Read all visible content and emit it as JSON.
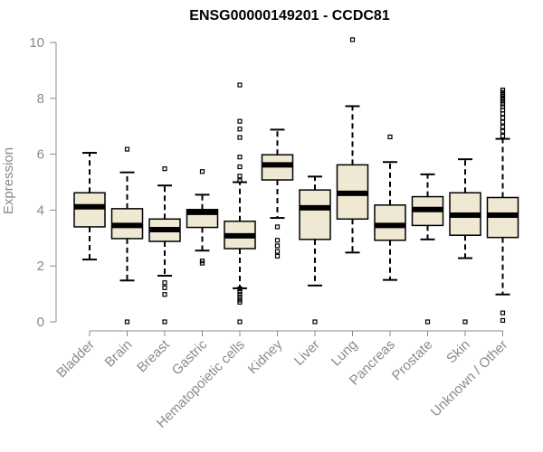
{
  "colors": {
    "box_fill": "#efe8d2",
    "stroke": "#000000",
    "axis": "#8a8a8a",
    "text": "#8a8a8a"
  },
  "chart_data": {
    "type": "boxplot",
    "title": "ENSG00000149201 - CCDC81",
    "ylabel": "Expression",
    "xlabel": "",
    "ylim": [
      0,
      10
    ],
    "yticks": [
      0,
      2,
      4,
      6,
      8,
      10
    ],
    "grid": false,
    "categories": [
      "Bladder",
      "Brain",
      "Breast",
      "Gastric",
      "Hematopoietic cells",
      "Kidney",
      "Liver",
      "Lung",
      "Pancreas",
      "Prostate",
      "Skin",
      "Unknown / Other"
    ],
    "boxes": [
      {
        "q1": 3.4,
        "median": 4.12,
        "q3": 4.62,
        "whisker_low": 2.23,
        "whisker_high": 6.05,
        "outliers": []
      },
      {
        "q1": 2.98,
        "median": 3.45,
        "q3": 4.05,
        "whisker_low": 1.48,
        "whisker_high": 5.35,
        "outliers": [
          6.18,
          0.0
        ]
      },
      {
        "q1": 2.88,
        "median": 3.3,
        "q3": 3.68,
        "whisker_low": 1.65,
        "whisker_high": 4.88,
        "outliers": [
          5.48,
          1.4,
          1.22,
          0.98,
          0.0
        ]
      },
      {
        "q1": 3.38,
        "median": 3.92,
        "q3": 4.02,
        "whisker_low": 2.55,
        "whisker_high": 4.55,
        "outliers": [
          5.38,
          2.18,
          2.1
        ]
      },
      {
        "q1": 2.62,
        "median": 3.08,
        "q3": 3.6,
        "whisker_low": 1.2,
        "whisker_high": 5.0,
        "outliers": [
          8.48,
          7.18,
          6.9,
          6.6,
          5.9,
          5.55,
          5.22,
          5.05,
          1.18,
          1.08,
          0.98,
          0.88,
          0.78,
          0.7,
          0.0
        ]
      },
      {
        "q1": 5.08,
        "median": 5.62,
        "q3": 5.98,
        "whisker_low": 3.72,
        "whisker_high": 6.88,
        "outliers": [
          3.4,
          2.92,
          2.72,
          2.52,
          2.35
        ]
      },
      {
        "q1": 2.95,
        "median": 4.08,
        "q3": 4.72,
        "whisker_low": 1.3,
        "whisker_high": 5.2,
        "outliers": [
          0.0
        ]
      },
      {
        "q1": 3.68,
        "median": 4.6,
        "q3": 5.62,
        "whisker_low": 2.48,
        "whisker_high": 7.72,
        "outliers": [
          10.1
        ]
      },
      {
        "q1": 2.92,
        "median": 3.45,
        "q3": 4.18,
        "whisker_low": 1.5,
        "whisker_high": 5.72,
        "outliers": [
          6.62
        ]
      },
      {
        "q1": 3.45,
        "median": 4.02,
        "q3": 4.48,
        "whisker_low": 2.95,
        "whisker_high": 5.28,
        "outliers": [
          0.0
        ]
      },
      {
        "q1": 3.1,
        "median": 3.82,
        "q3": 4.62,
        "whisker_low": 2.28,
        "whisker_high": 5.82,
        "outliers": [
          0.0
        ]
      },
      {
        "q1": 3.02,
        "median": 3.82,
        "q3": 4.45,
        "whisker_low": 0.98,
        "whisker_high": 6.55,
        "outliers": [
          8.3,
          8.22,
          8.14,
          8.06,
          7.98,
          7.9,
          7.8,
          7.7,
          7.58,
          7.45,
          7.3,
          7.15,
          6.98,
          6.82,
          6.65,
          0.32,
          0.05
        ]
      }
    ]
  }
}
